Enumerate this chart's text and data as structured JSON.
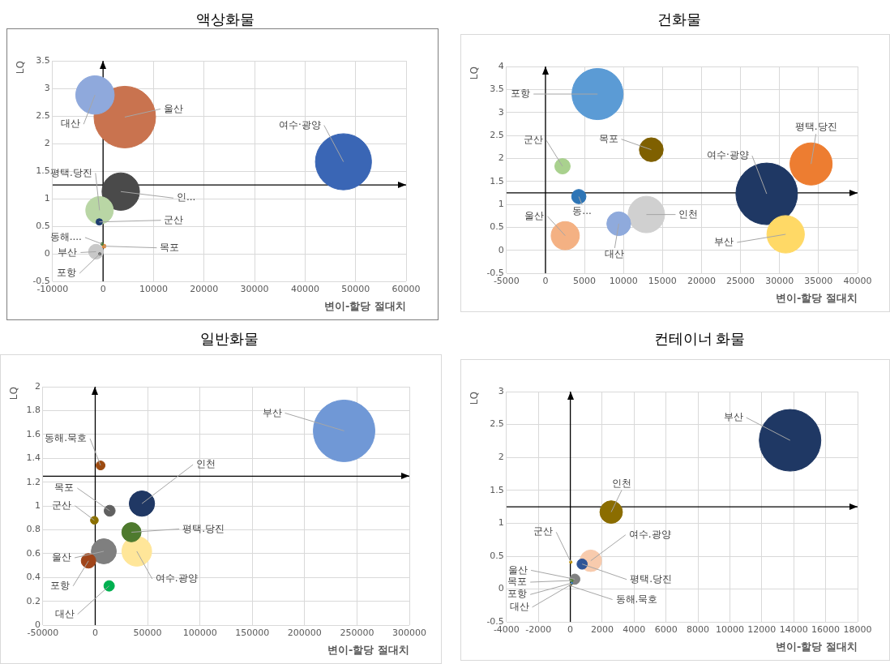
{
  "chart_data": [
    {
      "type": "bubble",
      "title": "액상화물",
      "xlabel": "변이-할당 절대치",
      "ylabel": "LQ",
      "xlim": [
        -10000,
        60000
      ],
      "xticks": [
        -10000,
        0,
        10000,
        20000,
        30000,
        40000,
        50000,
        60000
      ],
      "ylim": [
        -0.5,
        3.5
      ],
      "yticks": [
        -0.5,
        0,
        0.5,
        1,
        1.5,
        2,
        2.5,
        3,
        3.5
      ],
      "grid": true,
      "ref_lines": [
        {
          "axis": "y",
          "value": 1.25
        },
        {
          "axis": "x",
          "value": 0
        }
      ],
      "series": [
        {
          "name": "대산",
          "color": "#8fa9dc",
          "x": [
            -1600
          ],
          "values": [
            2.88
          ],
          "sizes": [
            0.39
          ]
        },
        {
          "name": "울산",
          "color": "#c9734f",
          "x": [
            4300
          ],
          "values": [
            2.48
          ],
          "sizes": [
            1
          ]
        },
        {
          "name": "여수·광양",
          "color": "#3a66b5",
          "x": [
            47600
          ],
          "values": [
            1.67
          ],
          "sizes": [
            0.83
          ]
        },
        {
          "name": "인...",
          "color": "#4a4a4a",
          "x": [
            3500
          ],
          "values": [
            1.13
          ],
          "sizes": [
            0.37
          ]
        },
        {
          "name": "평택.당진",
          "color": "#b9d6a5",
          "x": [
            -700
          ],
          "values": [
            0.79
          ],
          "sizes": [
            0.2
          ]
        },
        {
          "name": "군산",
          "color": "#1f3d70",
          "x": [
            -750
          ],
          "values": [
            0.58
          ],
          "sizes": [
            0.011
          ]
        },
        {
          "name": "동해....",
          "color": "#4c7a3a",
          "x": [
            -200
          ],
          "values": [
            0.18
          ],
          "sizes": [
            0.002
          ]
        },
        {
          "name": "목포",
          "color": "#e08a3c",
          "x": [
            200
          ],
          "values": [
            0.14
          ],
          "sizes": [
            0.004
          ]
        },
        {
          "name": "부산",
          "color": "#c8c8c8",
          "x": [
            -1400
          ],
          "values": [
            0.04
          ],
          "sizes": [
            0.058
          ]
        },
        {
          "name": "포항",
          "color": "#707070",
          "x": [
            -650
          ],
          "values": [
            0.0
          ],
          "sizes": [
            0.002
          ]
        }
      ]
    },
    {
      "type": "bubble",
      "title": "건화물",
      "xlabel": "변이-할당 절대치",
      "ylabel": "LQ",
      "xlim": [
        -5000,
        40000
      ],
      "xticks": [
        -5000,
        0,
        5000,
        10000,
        15000,
        20000,
        25000,
        30000,
        35000,
        40000
      ],
      "ylim": [
        -0.5,
        4
      ],
      "yticks": [
        -0.5,
        0,
        0.5,
        1,
        1.5,
        2,
        2.5,
        3,
        3.5,
        4
      ],
      "grid": true,
      "ref_lines": [
        {
          "axis": "y",
          "value": 1.25
        },
        {
          "axis": "x",
          "value": 0
        }
      ],
      "series": [
        {
          "name": "포항",
          "color": "#5b9bd5",
          "x": [
            6670
          ],
          "values": [
            3.4
          ],
          "sizes": [
            0.69
          ]
        },
        {
          "name": "목포",
          "color": "#7f6000",
          "x": [
            13560
          ],
          "values": [
            2.19
          ],
          "sizes": [
            0.15
          ]
        },
        {
          "name": "군산",
          "color": "#a9d18e",
          "x": [
            2180
          ],
          "values": [
            1.83
          ],
          "sizes": [
            0.0625
          ]
        },
        {
          "name": "평택.당진",
          "color": "#ed7d31",
          "x": [
            34040
          ],
          "values": [
            1.88
          ],
          "sizes": [
            0.47
          ]
        },
        {
          "name": "여수·광양",
          "color": "#1f3864",
          "x": [
            28350
          ],
          "values": [
            1.23
          ],
          "sizes": [
            1
          ]
        },
        {
          "name": "동...",
          "color": "#2e75b6",
          "x": [
            4270
          ],
          "values": [
            1.17
          ],
          "sizes": [
            0.054
          ]
        },
        {
          "name": "인천",
          "color": "#d0d0d0",
          "x": [
            12930
          ],
          "values": [
            0.78
          ],
          "sizes": [
            0.35
          ]
        },
        {
          "name": "대산",
          "color": "#8faadc",
          "x": [
            9390
          ],
          "values": [
            0.58
          ],
          "sizes": [
            0.15
          ]
        },
        {
          "name": "울산",
          "color": "#f4b183",
          "x": [
            2530
          ],
          "values": [
            0.32
          ],
          "sizes": [
            0.21
          ]
        },
        {
          "name": "부산",
          "color": "#ffd966",
          "x": [
            30780
          ],
          "values": [
            0.35
          ],
          "sizes": [
            0.37
          ]
        }
      ]
    },
    {
      "type": "bubble",
      "title": "일반화물",
      "xlabel": "변이-할당 절대치",
      "ylabel": "LQ",
      "xlim": [
        -50000,
        300000
      ],
      "xticks": [
        -50000,
        0,
        50000,
        100000,
        150000,
        200000,
        250000,
        300000
      ],
      "ylim": [
        0,
        2
      ],
      "yticks": [
        0,
        0.2,
        0.4,
        0.6,
        0.8,
        1,
        1.2,
        1.4,
        1.6,
        1.8,
        2
      ],
      "grid": true,
      "ref_lines": [
        {
          "axis": "y",
          "value": 1.25
        },
        {
          "axis": "x",
          "value": 0
        }
      ],
      "series": [
        {
          "name": "부산",
          "color": "#7098d6",
          "x": [
            237700
          ],
          "values": [
            1.63
          ],
          "sizes": [
            1
          ]
        },
        {
          "name": "동해.묵호",
          "color": "#9c4a10",
          "x": [
            5100
          ],
          "values": [
            1.34
          ],
          "sizes": [
            0.021
          ]
        },
        {
          "name": "인천",
          "color": "#203864",
          "x": [
            44600
          ],
          "values": [
            1.02
          ],
          "sizes": [
            0.17
          ]
        },
        {
          "name": "목포",
          "color": "#606060",
          "x": [
            13800
          ],
          "values": [
            0.96
          ],
          "sizes": [
            0.032
          ]
        },
        {
          "name": "군산",
          "color": "#8b7000",
          "x": [
            -800
          ],
          "values": [
            0.88
          ],
          "sizes": [
            0.016
          ]
        },
        {
          "name": "평택.당진",
          "color": "#4e7a2e",
          "x": [
            34600
          ],
          "values": [
            0.78
          ],
          "sizes": [
            0.098
          ]
        },
        {
          "name": "여수.광양",
          "color": "#ffe699",
          "x": [
            39700
          ],
          "values": [
            0.62
          ],
          "sizes": [
            0.233
          ]
        },
        {
          "name": "울산",
          "color": "#7f7f7f",
          "x": [
            8200
          ],
          "values": [
            0.62
          ],
          "sizes": [
            0.165
          ]
        },
        {
          "name": "포항",
          "color": "#a0451a",
          "x": [
            -6400
          ],
          "values": [
            0.54
          ],
          "sizes": [
            0.056
          ]
        },
        {
          "name": "대산",
          "color": "#00b050",
          "x": [
            13300
          ],
          "values": [
            0.33
          ],
          "sizes": [
            0.029
          ]
        }
      ]
    },
    {
      "type": "bubble",
      "title": "컨테이너 화물",
      "xlabel": "변이-할당 절대치",
      "ylabel": "LQ",
      "xlim": [
        -4000,
        18000
      ],
      "xticks": [
        -4000,
        -2000,
        0,
        2000,
        4000,
        6000,
        8000,
        10000,
        12000,
        14000,
        16000,
        18000
      ],
      "ylim": [
        -0.5,
        3
      ],
      "yticks": [
        -0.5,
        0,
        0.5,
        1,
        1.5,
        2,
        2.5,
        3
      ],
      "grid": true,
      "ref_lines": [
        {
          "axis": "y",
          "value": 1.25
        },
        {
          "axis": "x",
          "value": 0
        }
      ],
      "series": [
        {
          "name": "부산",
          "color": "#1f3864",
          "x": [
            13770
          ],
          "values": [
            2.26
          ],
          "sizes": [
            1
          ]
        },
        {
          "name": "인천",
          "color": "#8b6d00",
          "x": [
            2560
          ],
          "values": [
            1.17
          ],
          "sizes": [
            0.134
          ]
        },
        {
          "name": "여수.광양",
          "color": "#f8cbad",
          "x": [
            1280
          ],
          "values": [
            0.43
          ],
          "sizes": [
            0.1225
          ]
        },
        {
          "name": "평택.당진",
          "color": "#2f5597",
          "x": [
            740
          ],
          "values": [
            0.38
          ],
          "sizes": [
            0.028
          ]
        },
        {
          "name": "군산",
          "color": "#bf9000",
          "x": [
            30
          ],
          "values": [
            0.41
          ],
          "sizes": [
            0.0017
          ]
        },
        {
          "name": "울산",
          "color": "#808080",
          "x": [
            280
          ],
          "values": [
            0.15
          ],
          "sizes": [
            0.028
          ]
        },
        {
          "name": "목포",
          "color": "#548235",
          "x": [
            80
          ],
          "values": [
            0.13
          ],
          "sizes": [
            0.0025
          ]
        },
        {
          "name": "포항",
          "color": "#2e75b6",
          "x": [
            80
          ],
          "values": [
            0.09
          ],
          "sizes": [
            0.0011
          ]
        },
        {
          "name": "대산",
          "color": "#7f6000",
          "x": [
            50
          ],
          "values": [
            0.07
          ],
          "sizes": [
            0.0011
          ]
        },
        {
          "name": "동해.묵호",
          "color": "#404040",
          "x": [
            0
          ],
          "values": [
            0.05
          ],
          "sizes": [
            0.0006
          ]
        }
      ]
    }
  ]
}
